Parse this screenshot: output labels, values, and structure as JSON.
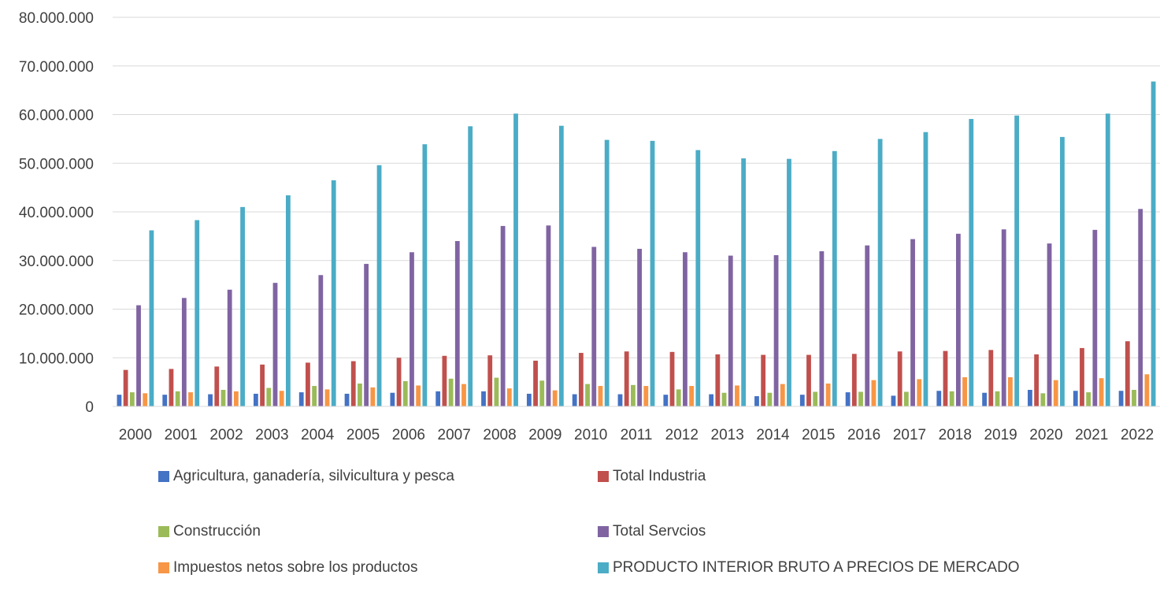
{
  "chart_data": {
    "type": "bar",
    "title": "",
    "xlabel": "",
    "ylabel": "",
    "ylim": [
      0,
      80000000
    ],
    "y_ticks": [
      "0",
      "10.000.000",
      "20.000.000",
      "30.000.000",
      "40.000.000",
      "50.000.000",
      "60.000.000",
      "70.000.000",
      "80.000.000"
    ],
    "grid": true,
    "legend_position": "bottom",
    "categories": [
      "2000",
      "2001",
      "2002",
      "2003",
      "2004",
      "2005",
      "2006",
      "2007",
      "2008",
      "2009",
      "2010",
      "2011",
      "2012",
      "2013",
      "2014",
      "2015",
      "2016",
      "2017",
      "2018",
      "2019",
      "2020",
      "2021",
      "2022"
    ],
    "series": [
      {
        "name": "Agricultura, ganadería, silvicultura y pesca",
        "color": "#4472C4",
        "values": [
          2400000,
          2400000,
          2500000,
          2600000,
          2900000,
          2600000,
          2800000,
          3100000,
          3100000,
          2600000,
          2500000,
          2500000,
          2400000,
          2500000,
          2100000,
          2400000,
          2900000,
          2200000,
          3200000,
          2800000,
          3400000,
          3200000,
          3200000
        ]
      },
      {
        "name": "Total Industria",
        "color": "#C0504D",
        "values": [
          7500000,
          7700000,
          8200000,
          8600000,
          9000000,
          9300000,
          10000000,
          10400000,
          10500000,
          9400000,
          11000000,
          11300000,
          11200000,
          10700000,
          10600000,
          10600000,
          10800000,
          11300000,
          11400000,
          11600000,
          10700000,
          12000000,
          13400000
        ]
      },
      {
        "name": "Construcción",
        "color": "#9BBB59",
        "values": [
          2900000,
          3100000,
          3400000,
          3800000,
          4200000,
          4700000,
          5200000,
          5700000,
          5900000,
          5300000,
          4600000,
          4400000,
          3500000,
          2800000,
          2800000,
          3000000,
          3000000,
          3000000,
          3100000,
          3100000,
          2700000,
          2900000,
          3400000
        ]
      },
      {
        "name": "Total Servcios",
        "color": "#8064A2",
        "values": [
          20800000,
          22300000,
          24000000,
          25400000,
          27000000,
          29300000,
          31700000,
          34000000,
          37100000,
          37200000,
          32800000,
          32400000,
          31700000,
          31000000,
          31100000,
          31900000,
          33100000,
          34400000,
          35500000,
          36400000,
          33500000,
          36300000,
          40600000
        ]
      },
      {
        "name": "Impuestos netos sobre los productos",
        "color": "#F79646",
        "values": [
          2700000,
          2900000,
          3100000,
          3200000,
          3500000,
          3900000,
          4300000,
          4600000,
          3700000,
          3300000,
          4200000,
          4200000,
          4200000,
          4300000,
          4600000,
          4700000,
          5400000,
          5600000,
          6000000,
          6000000,
          5400000,
          5800000,
          6600000
        ]
      },
      {
        "name": "PRODUCTO INTERIOR BRUTO A PRECIOS DE MERCADO",
        "color": "#4BACC6",
        "values": [
          36200000,
          38300000,
          41000000,
          43400000,
          46500000,
          49600000,
          53900000,
          57600000,
          60200000,
          57700000,
          54800000,
          54600000,
          52700000,
          51000000,
          50900000,
          52500000,
          55000000,
          56400000,
          59100000,
          59800000,
          55400000,
          60200000,
          66800000
        ]
      }
    ]
  },
  "legend": {
    "items": [
      {
        "label": "Agricultura, ganadería, silvicultura y pesca",
        "color": "#4472C4"
      },
      {
        "label": "Total Industria",
        "color": "#C0504D"
      },
      {
        "label": "Construcción",
        "color": "#9BBB59"
      },
      {
        "label": "Total Servcios",
        "color": "#8064A2"
      },
      {
        "label": "Impuestos netos sobre los productos",
        "color": "#F79646"
      },
      {
        "label": "PRODUCTO INTERIOR BRUTO A PRECIOS DE MERCADO",
        "color": "#4BACC6"
      }
    ]
  }
}
